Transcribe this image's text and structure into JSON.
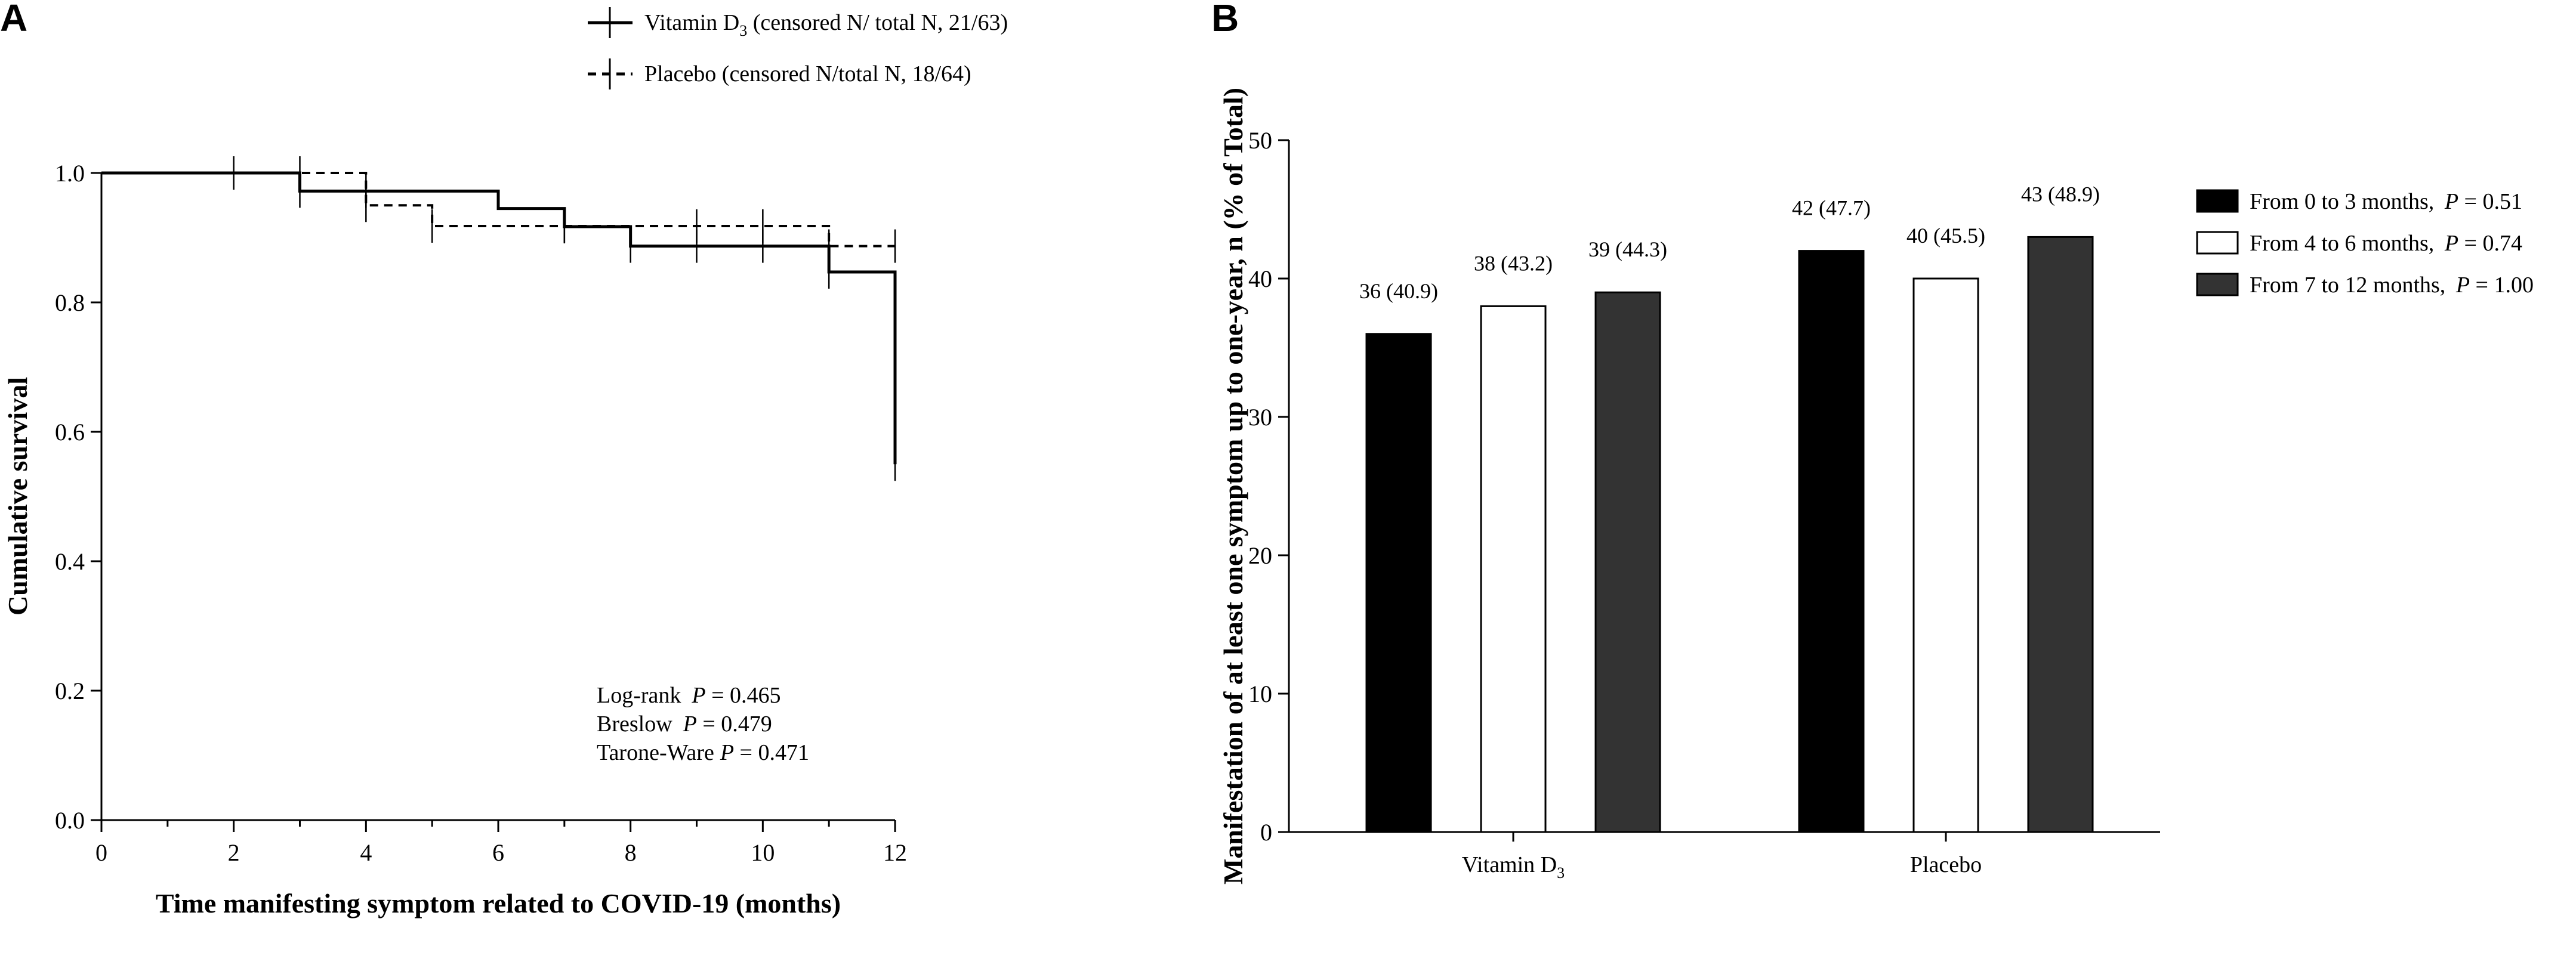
{
  "colors": {
    "ink": "#000000",
    "bar_black": "#000000",
    "bar_white": "#ffffff",
    "bar_dark": "#333333",
    "bg": "#ffffff"
  },
  "chart_data": [
    {
      "panel": "A",
      "type": "line",
      "subtype": "kaplan-meier",
      "xlabel": "Time manifesting symptom related to COVID-19 (months)",
      "ylabel": "Cumulative survival",
      "xlim": [
        0,
        12
      ],
      "ylim": [
        0.0,
        1.0
      ],
      "xticks": [
        0,
        2,
        4,
        6,
        8,
        10,
        12
      ],
      "xticks_minor": [
        1,
        3,
        5,
        7,
        9,
        11
      ],
      "yticks": [
        "0.0",
        "0.2",
        "0.4",
        "0.6",
        "0.8",
        "1.0"
      ],
      "yticks_values": [
        0.0,
        0.2,
        0.4,
        0.6,
        0.8,
        1.0
      ],
      "legend": {
        "placement": "top",
        "vitamin_name": "Vitamin D",
        "vitamin_sub": "3",
        "vitamin_rest": " (censored N/ total N, 21/63)",
        "placebo": "Placebo (censored N/total N, 18/64)"
      },
      "stats": {
        "logrank_name": "Log-rank",
        "logrank_value": " = 0.465",
        "breslow_name": "Breslow",
        "breslow_value": " = 0.479",
        "tarone_name": "Tarone-Ware",
        "tarone_value": " = 0.471",
        "p_symbol": "P"
      },
      "series": [
        {
          "name": "Vitamin D3",
          "style": "solid",
          "steps": [
            [
              0,
              1.0
            ],
            [
              3,
              0.972
            ],
            [
              6,
              0.945
            ],
            [
              7,
              0.917
            ],
            [
              8,
              0.887
            ],
            [
              11,
              0.847
            ],
            [
              12,
              0.55
            ]
          ],
          "censored": [
            [
              2,
              1.0
            ],
            [
              3,
              0.972
            ],
            [
              4,
              0.972
            ],
            [
              7,
              0.917
            ],
            [
              8,
              0.887
            ],
            [
              9,
              0.887
            ],
            [
              10,
              0.887
            ],
            [
              11,
              0.847
            ],
            [
              12,
              0.55
            ]
          ]
        },
        {
          "name": "Placebo",
          "style": "dashed",
          "steps": [
            [
              0,
              1.0
            ],
            [
              4,
              0.95
            ],
            [
              5,
              0.918
            ],
            [
              11,
              0.887
            ],
            [
              12,
              0.887
            ]
          ],
          "censored": [
            [
              3,
              1.0
            ],
            [
              4,
              0.95
            ],
            [
              5,
              0.918
            ],
            [
              7,
              0.918
            ],
            [
              9,
              0.918
            ],
            [
              10,
              0.918
            ],
            [
              11,
              0.887
            ],
            [
              12,
              0.887
            ]
          ]
        }
      ]
    },
    {
      "panel": "B",
      "type": "bar",
      "xlabel": "",
      "ylabel": "Manifestation of at least one symptom up to one-year, n (% of Total)",
      "ylim": [
        0,
        50
      ],
      "yticks": [
        0,
        10,
        20,
        30,
        40,
        50
      ],
      "category_labels": [
        {
          "main": "Vitamin D",
          "sub": "3"
        },
        {
          "main": "Placebo",
          "sub": ""
        }
      ],
      "categories": [
        "Vitamin D3",
        "Placebo"
      ],
      "series": [
        {
          "name": "From 0 to 3 months",
          "p_symbol": "P",
          "p_value": " = 0.51",
          "legend_prefix": "From 0 to 3 months, ",
          "fill": "#000000",
          "values": [
            36,
            42
          ],
          "labels": [
            "36 (40.9)",
            "42 (47.7)"
          ]
        },
        {
          "name": "From 4 to 6 months",
          "p_symbol": "P",
          "p_value": " = 0.74",
          "legend_prefix": "From 4 to 6 months, ",
          "fill": "#ffffff",
          "values": [
            38,
            40
          ],
          "labels": [
            "38 (43.2)",
            "40 (45.5)"
          ]
        },
        {
          "name": "From 7 to 12 months",
          "p_symbol": "P",
          "p_value": " = 1.00",
          "legend_prefix": "From 7 to 12 months, ",
          "fill": "#333333",
          "values": [
            39,
            43
          ],
          "labels": [
            "39 (44.3)",
            "43 (48.9)"
          ]
        }
      ],
      "legend_placement": "right"
    }
  ]
}
